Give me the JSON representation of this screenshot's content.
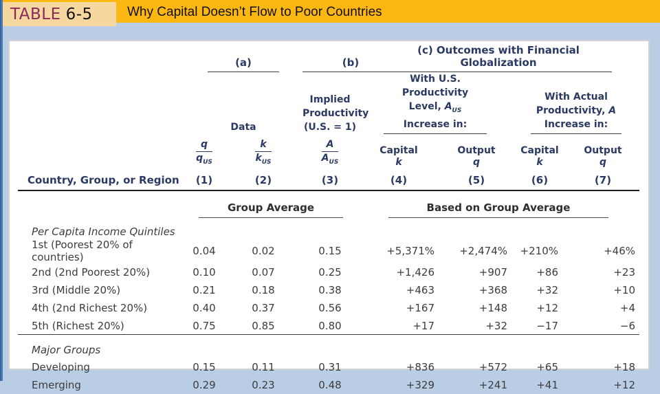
{
  "title_bar": {
    "table_label": "TABLE",
    "table_number": "6-5",
    "title": "Why Capital Doesn’t Flow to Poor Countries"
  },
  "colors": {
    "title_bar_bg": "#fdb713",
    "table_tag_bg": "#f6d7a0",
    "table_tag_text": "#8b2956",
    "page_bg": "#b9cde4",
    "left_stripe": "#4677b3",
    "header_text": "#2b3a64",
    "body_text": "#3c3c3c"
  },
  "table": {
    "group_headers": {
      "a": "(a)",
      "b": "(b)",
      "c": "(c) Outcomes with Financial Globalization"
    },
    "sub_headers": {
      "data": "Data",
      "implied_line1": "Implied Productivity",
      "implied_line2": "(U.S. = 1)",
      "with_us": {
        "line1": "With U.S.",
        "line2": "Productivity",
        "line3_prefix": "Level, ",
        "line3_var": "A",
        "line3_sub": "US",
        "line4": "Increase in:"
      },
      "with_actual": {
        "line1": "With Actual",
        "line2_prefix": "Productivity, ",
        "line2_var": "A",
        "line3": "Increase in:"
      }
    },
    "column_headers": {
      "row_label": "Country, Group, or Region",
      "fractions": [
        {
          "num": "q",
          "den": "q",
          "den_sub": "US"
        },
        {
          "num": "k",
          "den": "k",
          "den_sub": "US"
        },
        {
          "num": "A",
          "den": "A",
          "den_sub": "US"
        }
      ],
      "outcome_cols": [
        {
          "label": "Capital",
          "var": "k"
        },
        {
          "label": "Output",
          "var": "q"
        },
        {
          "label": "Capital",
          "var": "k"
        },
        {
          "label": "Output",
          "var": "q"
        }
      ],
      "numbers": [
        "(1)",
        "(2)",
        "(3)",
        "(4)",
        "(5)",
        "(6)",
        "(7)"
      ]
    },
    "span_headers": {
      "left": "Group Average",
      "right": "Based on Group Average"
    },
    "sections": [
      {
        "section_label": "Per Capita Income Quintiles",
        "rows": [
          {
            "label": "1st (Poorest 20% of countries)",
            "values": [
              "0.04",
              "0.02",
              "0.15",
              "+5,371%",
              "+2,474%",
              "+210%",
              "+46%"
            ]
          },
          {
            "label": "2nd (2nd Poorest 20%)",
            "values": [
              "0.10",
              "0.07",
              "0.25",
              "+1,426",
              "+907",
              "+86",
              "+23"
            ]
          },
          {
            "label": "3rd (Middle 20%)",
            "values": [
              "0.21",
              "0.18",
              "0.38",
              "+463",
              "+368",
              "+32",
              "+10"
            ]
          },
          {
            "label": "4th (2nd Richest 20%)",
            "values": [
              "0.40",
              "0.37",
              "0.56",
              "+167",
              "+148",
              "+12",
              "+4"
            ]
          },
          {
            "label": "5th (Richest 20%)",
            "values": [
              "0.75",
              "0.85",
              "0.80",
              "+17",
              "+32",
              "−17",
              "−6"
            ]
          }
        ]
      },
      {
        "section_label": "Major Groups",
        "rows": [
          {
            "label": "Developing",
            "values": [
              "0.15",
              "0.11",
              "0.31",
              "+836",
              "+572",
              "+65",
              "+18"
            ]
          },
          {
            "label": "Emerging",
            "values": [
              "0.29",
              "0.23",
              "0.48",
              "+329",
              "+241",
              "+41",
              "+12"
            ]
          }
        ]
      }
    ]
  }
}
